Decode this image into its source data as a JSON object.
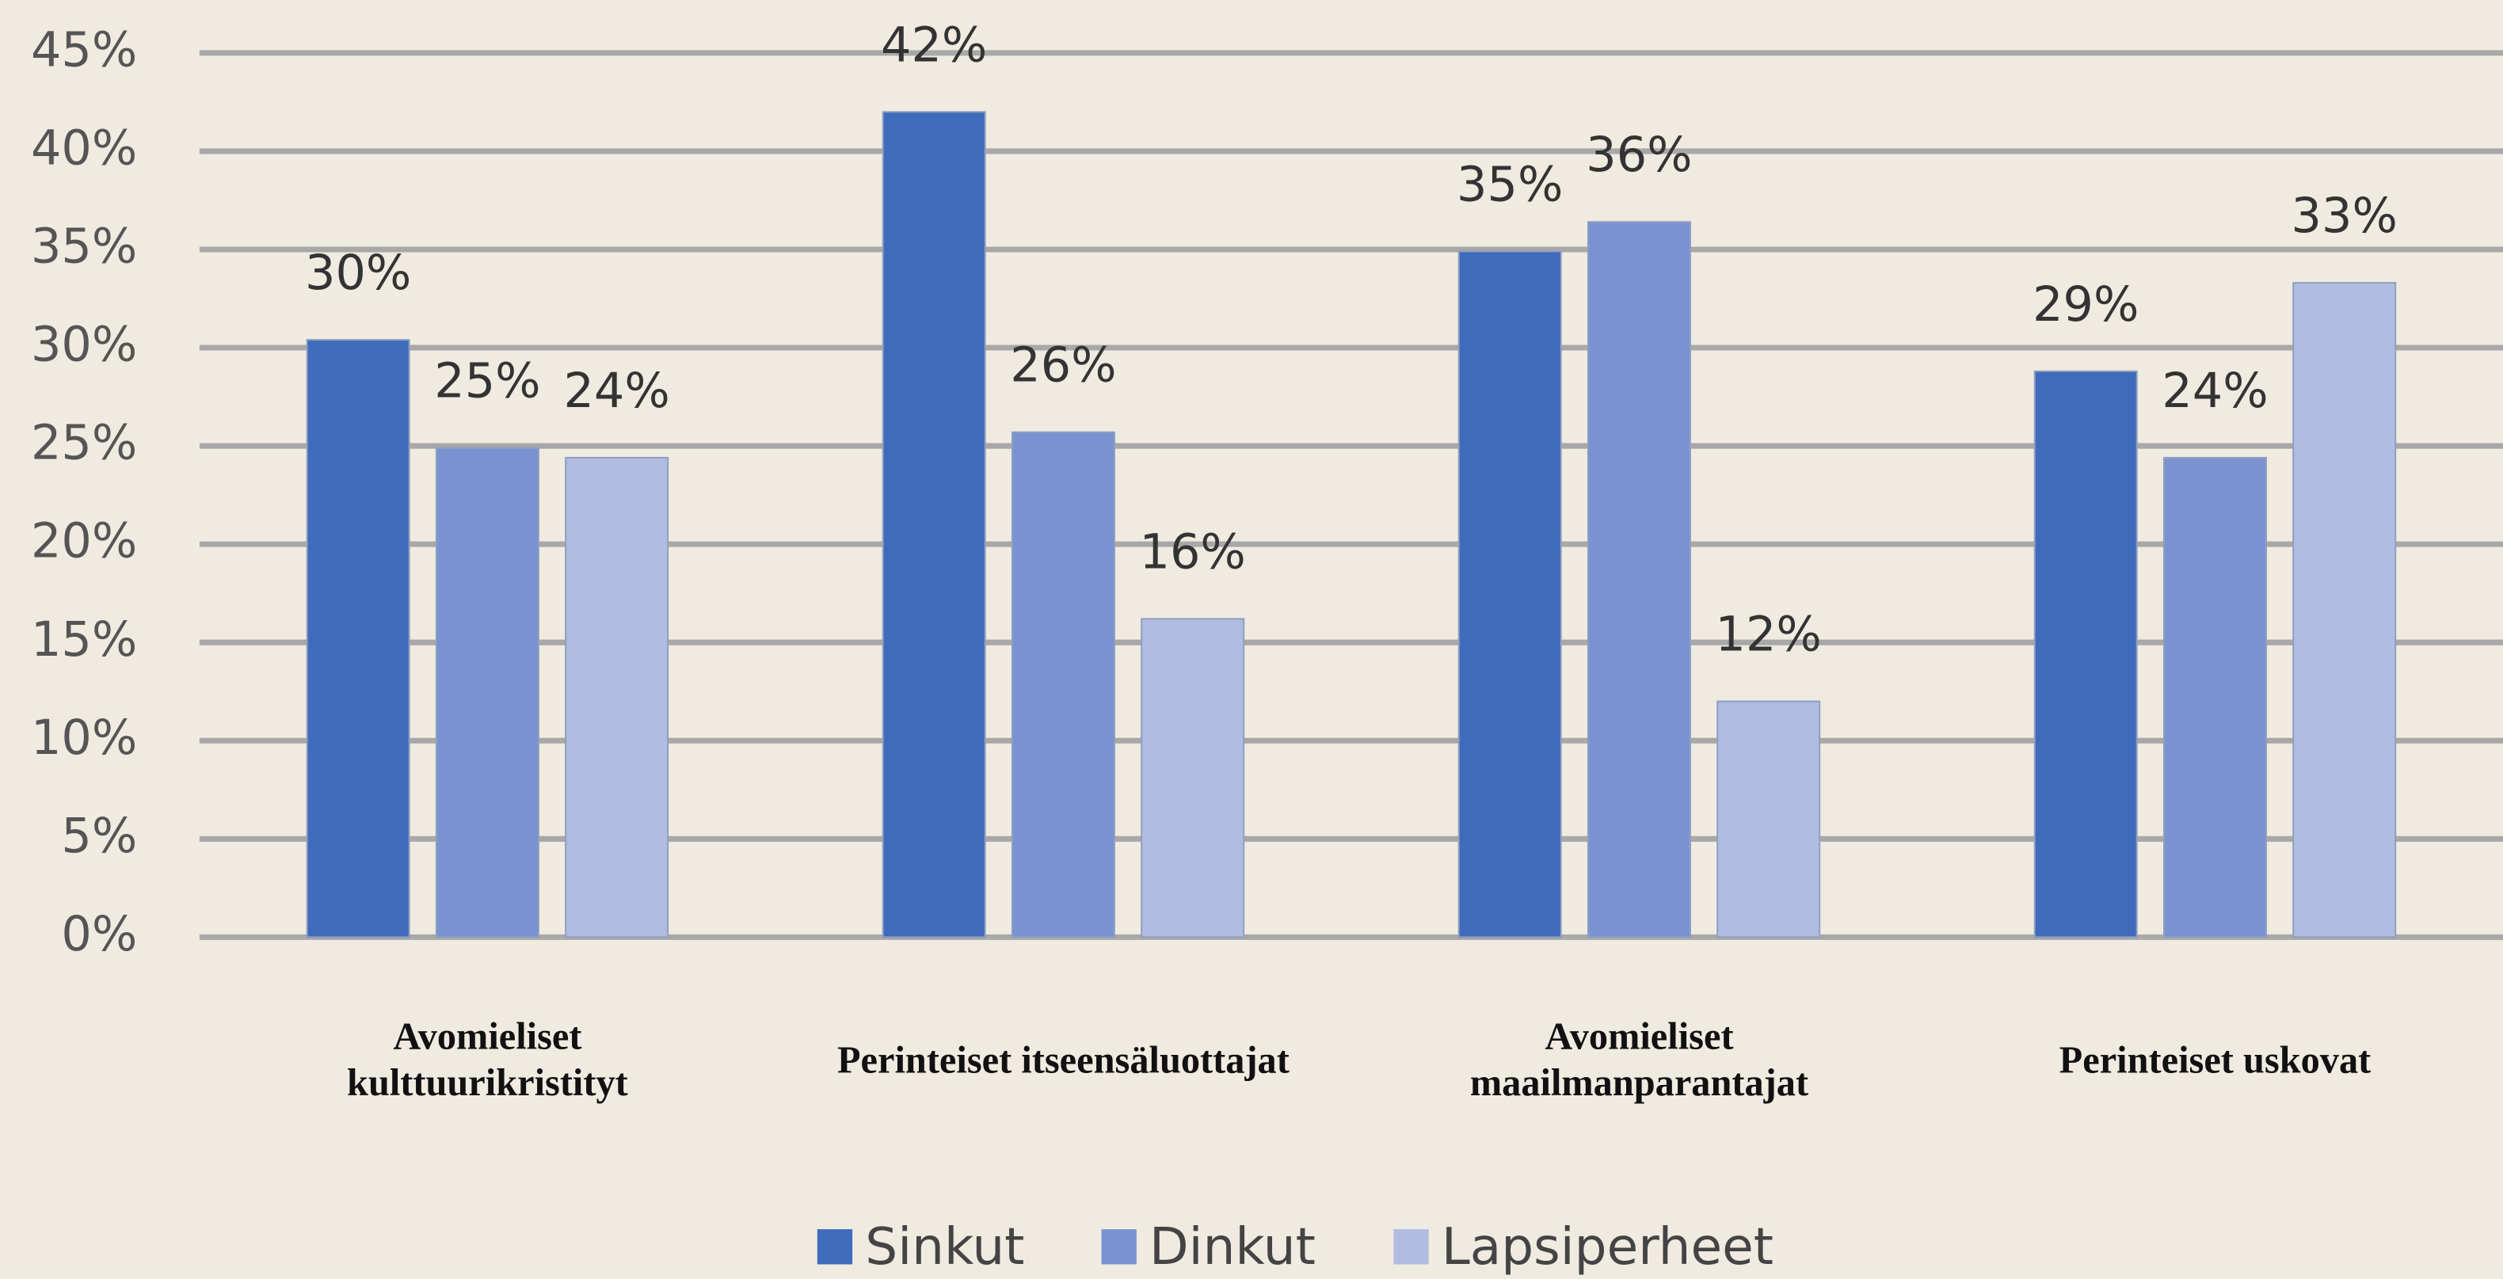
{
  "chart_data": {
    "type": "bar",
    "categories": [
      "Avomieliset kulttuurikristityt",
      "Perinteiset itseensäluottajat",
      "Avomieliset maailmanparantajat",
      "Perinteiset uskovat"
    ],
    "series": [
      {
        "name": "Sinkut",
        "color": "#3f6bbb",
        "values": [
          30.4,
          42.0,
          34.9,
          28.8
        ],
        "value_labels": [
          "30%",
          "42%",
          "35%",
          "29%"
        ]
      },
      {
        "name": "Dinkut",
        "color": "#7a93d0",
        "values": [
          24.9,
          25.7,
          36.4,
          24.4
        ],
        "value_labels": [
          "25%",
          "26%",
          "36%",
          "24%"
        ]
      },
      {
        "name": "Lapsiperheet",
        "color": "#b1bde0",
        "values": [
          24.4,
          16.2,
          12.0,
          33.3
        ],
        "value_labels": [
          "24%",
          "16%",
          "12%",
          "33%"
        ]
      }
    ],
    "ylim": [
      0,
      45
    ],
    "yticks": [
      {
        "value": 0,
        "label": "0%"
      },
      {
        "value": 5,
        "label": "5%"
      },
      {
        "value": 10,
        "label": "10%"
      },
      {
        "value": 15,
        "label": "15%"
      },
      {
        "value": 20,
        "label": "20%"
      },
      {
        "value": 25,
        "label": "25%"
      },
      {
        "value": 30,
        "label": "30%"
      },
      {
        "value": 35,
        "label": "35%"
      },
      {
        "value": 40,
        "label": "40%"
      },
      {
        "value": 45,
        "label": "45%"
      }
    ],
    "grid": true,
    "legend": "bottom"
  }
}
